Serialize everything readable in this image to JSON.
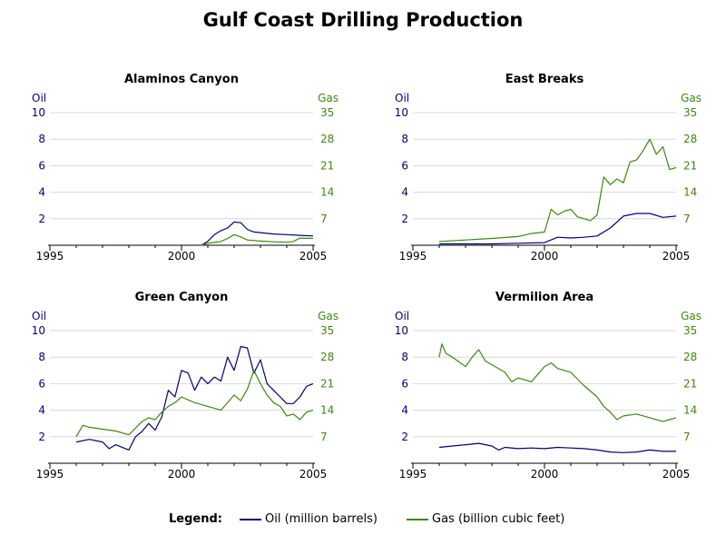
{
  "title": "Gulf Coast Drilling Production",
  "legend": {
    "label": "Legend:",
    "oil": "Oil (million barrels)",
    "gas": "Gas (billion cubic feet)"
  },
  "colors": {
    "oil": "#000080",
    "gas": "#3a8a0a",
    "grid": "#d8d8d8"
  },
  "chart_data": [
    {
      "type": "line",
      "title": "Alaminos Canyon",
      "left_axis": {
        "label": "Oil",
        "ticks": [
          2,
          4,
          6,
          8,
          10
        ],
        "range": [
          0,
          10
        ]
      },
      "right_axis": {
        "label": "Gas",
        "ticks": [
          7,
          14,
          21,
          28,
          35
        ],
        "range": [
          0,
          35
        ]
      },
      "x_ticks": [
        1995,
        2000,
        2005
      ],
      "x_range": [
        1995,
        2005
      ],
      "grid": true,
      "series": [
        {
          "name": "Oil (million barrels)",
          "axis": "left",
          "x": [
            2000.75,
            2001.0,
            2001.25,
            2001.5,
            2001.75,
            2002.0,
            2002.25,
            2002.5,
            2002.75,
            2003.0,
            2003.5,
            2004.0,
            2004.5,
            2005.0
          ],
          "y": [
            0.0,
            0.3,
            0.8,
            1.1,
            1.3,
            1.75,
            1.7,
            1.2,
            1.0,
            0.95,
            0.85,
            0.8,
            0.75,
            0.7
          ]
        },
        {
          "name": "Gas (billion cubic feet)",
          "axis": "right",
          "x": [
            2000.75,
            2001.0,
            2001.5,
            2001.75,
            2002.0,
            2002.25,
            2002.5,
            2003.0,
            2003.5,
            2004.0,
            2004.25,
            2004.5,
            2005.0
          ],
          "y": [
            0.0,
            0.5,
            1.0,
            1.8,
            2.8,
            2.2,
            1.4,
            1.1,
            0.9,
            0.8,
            1.0,
            1.9,
            1.8
          ]
        }
      ]
    },
    {
      "type": "line",
      "title": "East Breaks",
      "left_axis": {
        "label": "Oil",
        "ticks": [
          2,
          4,
          6,
          8,
          10
        ],
        "range": [
          0,
          10
        ]
      },
      "right_axis": {
        "label": "Gas",
        "ticks": [
          7,
          14,
          21,
          28,
          35
        ],
        "range": [
          0,
          35
        ]
      },
      "x_ticks": [
        1995,
        2000,
        2005
      ],
      "x_range": [
        1995,
        2005
      ],
      "grid": true,
      "series": [
        {
          "name": "Oil (million barrels)",
          "axis": "left",
          "x": [
            1996.0,
            1997.0,
            1998.0,
            1999.0,
            2000.0,
            2000.5,
            2001.0,
            2001.5,
            2002.0,
            2002.5,
            2003.0,
            2003.5,
            2004.0,
            2004.5,
            2005.0
          ],
          "y": [
            0.1,
            0.1,
            0.1,
            0.15,
            0.2,
            0.6,
            0.55,
            0.6,
            0.7,
            1.3,
            2.2,
            2.4,
            2.4,
            2.1,
            2.2
          ]
        },
        {
          "name": "Gas (billion cubic feet)",
          "axis": "right",
          "x": [
            1996.0,
            1997.0,
            1998.0,
            1999.0,
            1999.5,
            2000.0,
            2000.25,
            2000.5,
            2000.75,
            2001.0,
            2001.25,
            2001.5,
            2001.75,
            2002.0,
            2002.25,
            2002.5,
            2002.75,
            2003.0,
            2003.25,
            2003.5,
            2003.75,
            2004.0,
            2004.25,
            2004.5,
            2004.75,
            2005.0
          ],
          "y": [
            1.0,
            1.4,
            1.8,
            2.3,
            3.1,
            3.5,
            9.5,
            8.0,
            9.0,
            9.5,
            7.5,
            7.0,
            6.5,
            8.0,
            18.0,
            16.0,
            17.5,
            16.5,
            22.0,
            22.5,
            25.0,
            28.0,
            24.0,
            26.0,
            20.0,
            20.5
          ]
        }
      ]
    },
    {
      "type": "line",
      "title": "Green Canyon",
      "left_axis": {
        "label": "Oil",
        "ticks": [
          2,
          4,
          6,
          8,
          10
        ],
        "range": [
          0,
          10
        ]
      },
      "right_axis": {
        "label": "Gas",
        "ticks": [
          7,
          14,
          21,
          28,
          35
        ],
        "range": [
          0,
          35
        ]
      },
      "x_ticks": [
        1995,
        2000,
        2005
      ],
      "x_range": [
        1995,
        2005
      ],
      "grid": true,
      "series": [
        {
          "name": "Oil (million barrels)",
          "axis": "left",
          "x": [
            1996.0,
            1996.5,
            1997.0,
            1997.25,
            1997.5,
            1998.0,
            1998.25,
            1998.5,
            1998.75,
            1999.0,
            1999.25,
            1999.5,
            1999.75,
            2000.0,
            2000.25,
            2000.5,
            2000.75,
            2001.0,
            2001.25,
            2001.5,
            2001.75,
            2002.0,
            2002.25,
            2002.5,
            2002.75,
            2003.0,
            2003.25,
            2003.5,
            2003.75,
            2004.0,
            2004.25,
            2004.5,
            2004.75,
            2005.0
          ],
          "y": [
            1.6,
            1.8,
            1.6,
            1.1,
            1.4,
            1.0,
            2.0,
            2.4,
            3.0,
            2.5,
            3.5,
            5.5,
            5.0,
            7.0,
            6.8,
            5.5,
            6.5,
            6.0,
            6.5,
            6.2,
            8.0,
            7.0,
            8.8,
            8.7,
            6.8,
            7.8,
            6.0,
            5.5,
            5.0,
            4.5,
            4.5,
            5.0,
            5.8,
            6.0
          ]
        },
        {
          "name": "Gas (billion cubic feet)",
          "axis": "right",
          "x": [
            1996.0,
            1996.25,
            1996.5,
            1997.0,
            1997.5,
            1998.0,
            1998.5,
            1998.75,
            1999.0,
            1999.25,
            1999.5,
            1999.75,
            2000.0,
            2000.5,
            2001.0,
            2001.5,
            2002.0,
            2002.25,
            2002.5,
            2002.75,
            2003.0,
            2003.25,
            2003.5,
            2003.75,
            2004.0,
            2004.25,
            2004.5,
            2004.75,
            2005.0
          ],
          "y": [
            7.0,
            10.0,
            9.5,
            9.0,
            8.5,
            7.5,
            11.0,
            12.0,
            11.5,
            13.5,
            15.0,
            16.0,
            17.5,
            16.0,
            15.0,
            14.0,
            18.0,
            16.5,
            19.5,
            24.5,
            21.0,
            18.0,
            16.0,
            15.0,
            12.5,
            13.0,
            11.5,
            13.5,
            14.0
          ]
        }
      ]
    },
    {
      "type": "line",
      "title": "Vermilion Area",
      "left_axis": {
        "label": "Oil",
        "ticks": [
          2,
          4,
          6,
          8,
          10
        ],
        "range": [
          0,
          10
        ]
      },
      "right_axis": {
        "label": "Gas",
        "ticks": [
          7,
          14,
          21,
          28,
          35
        ],
        "range": [
          0,
          35
        ]
      },
      "x_ticks": [
        1995,
        2000,
        2005
      ],
      "x_range": [
        1995,
        2005
      ],
      "grid": true,
      "series": [
        {
          "name": "Oil (million barrels)",
          "axis": "left",
          "x": [
            1996.0,
            1996.5,
            1997.0,
            1997.5,
            1998.0,
            1998.25,
            1998.5,
            1999.0,
            1999.5,
            2000.0,
            2000.5,
            2001.0,
            2001.5,
            2002.0,
            2002.5,
            2003.0,
            2003.5,
            2004.0,
            2004.5,
            2005.0
          ],
          "y": [
            1.2,
            1.3,
            1.4,
            1.5,
            1.3,
            1.0,
            1.2,
            1.1,
            1.15,
            1.1,
            1.2,
            1.15,
            1.1,
            1.0,
            0.85,
            0.8,
            0.85,
            1.0,
            0.9,
            0.9
          ]
        },
        {
          "name": "Gas (billion cubic feet)",
          "axis": "right",
          "x": [
            1996.0,
            1996.1,
            1996.25,
            1996.5,
            1997.0,
            1997.25,
            1997.5,
            1997.75,
            1998.0,
            1998.5,
            1998.75,
            1999.0,
            1999.5,
            2000.0,
            2000.25,
            2000.5,
            2001.0,
            2001.5,
            2002.0,
            2002.25,
            2002.5,
            2002.75,
            2003.0,
            2003.5,
            2004.0,
            2004.5,
            2004.75,
            2005.0
          ],
          "y": [
            28.0,
            31.5,
            29.0,
            28.0,
            25.5,
            28.0,
            30.0,
            27.0,
            26.0,
            24.0,
            21.5,
            22.5,
            21.5,
            25.5,
            26.5,
            25.0,
            24.0,
            20.5,
            17.5,
            15.0,
            13.5,
            11.5,
            12.5,
            13.0,
            12.0,
            11.0,
            11.5,
            12.0
          ]
        }
      ]
    }
  ]
}
